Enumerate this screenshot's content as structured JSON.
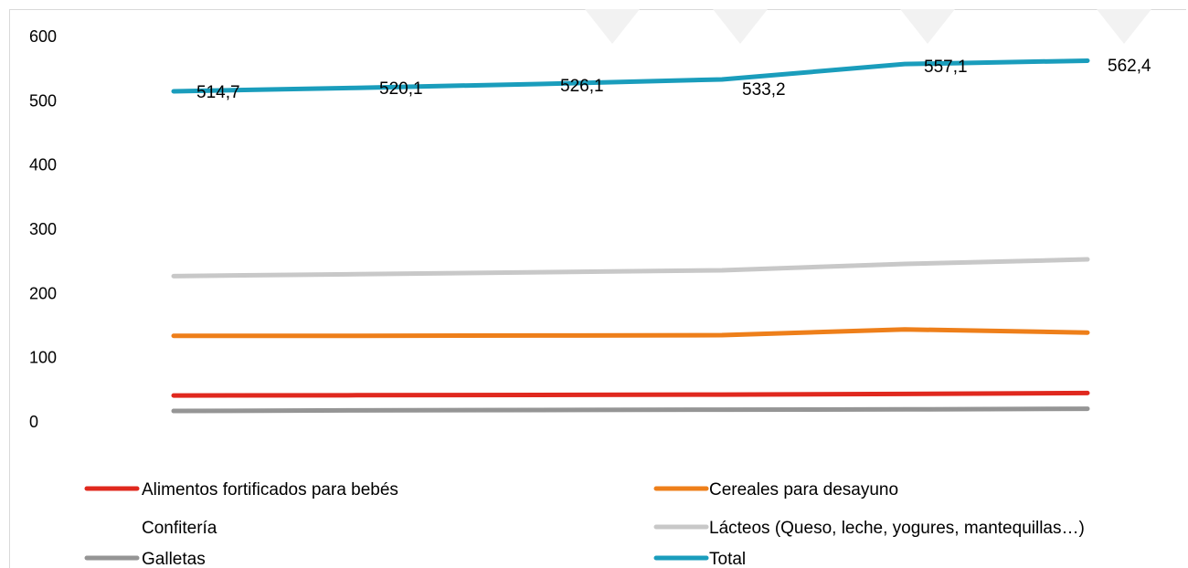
{
  "chart_data": {
    "type": "line",
    "title": "",
    "xlabel": "",
    "ylabel": "",
    "ylim": [
      0,
      600
    ],
    "yticks": [
      "0",
      "100",
      "200",
      "300",
      "400",
      "500",
      "600"
    ],
    "grid": false,
    "legend_position": "bottom",
    "x": [
      1,
      2,
      3,
      4,
      5,
      6
    ],
    "series": [
      {
        "name": "Alimentos fortificados para bebés",
        "color": "#e0281e",
        "values": [
          41,
          41.5,
          42,
          42.5,
          43.5,
          45
        ]
      },
      {
        "name": "Cereales para desayuno",
        "color": "#ee7f1a",
        "values": [
          134,
          134,
          134.5,
          135,
          144,
          139
        ]
      },
      {
        "name": "Confitería",
        "color": "#ffffff",
        "values": [
          null,
          null,
          null,
          null,
          null,
          null
        ]
      },
      {
        "name": "Lácteos (Queso, leche, yogures, mantequillas…)",
        "color": "#c8c8c8",
        "values": [
          227,
          230,
          233,
          236,
          246,
          253
        ]
      },
      {
        "name": "Galletas",
        "color": "#959595",
        "values": [
          17,
          18,
          18.5,
          19,
          19.5,
          20.5
        ]
      },
      {
        "name": "Total",
        "color": "#1a9dbc",
        "values": [
          514.7,
          520.1,
          526.1,
          533.2,
          557.1,
          562.4
        ],
        "labels": [
          "514,7",
          "520,1",
          "526,1",
          "533,2",
          "557,1",
          "562,4"
        ]
      }
    ]
  }
}
